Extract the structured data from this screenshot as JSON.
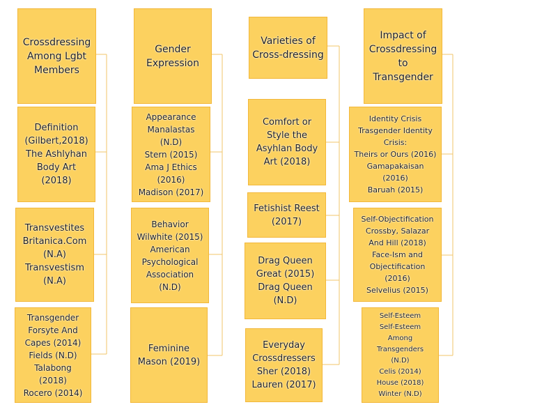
{
  "columns": [
    {
      "header": [
        "Crossdressing",
        "Among Lgbt",
        "Members"
      ],
      "children": [
        [
          "Definition",
          "(Gilbert,2018)",
          "The Ashlyhan",
          "Body Art",
          "(2018)"
        ],
        [
          "Transvestites",
          "Britanica.Com",
          "(N.A)",
          "Transvestism",
          "(N.A)"
        ],
        [
          "Transgender",
          "Forsyte And",
          "Capes (2014)",
          "Fields (N.D)",
          "Talabong",
          "(2018)",
          "Rocero (2014)"
        ]
      ]
    },
    {
      "header": [
        "Gender",
        "Expression"
      ],
      "children": [
        [
          "Appearance",
          "Manalastas",
          "(N.D)",
          "Stern (2015)",
          "Ama J Ethics",
          "(2016)",
          "Madison (2017)"
        ],
        [
          "Behavior",
          "Wilwhite (2015)",
          "American",
          "Psychological",
          "Association",
          "(N.D)"
        ],
        [
          "Feminine",
          "Mason (2019)"
        ]
      ]
    },
    {
      "header": [
        "Varieties of",
        "Cross-dressing"
      ],
      "children": [
        [
          "Comfort or",
          "Style the",
          "Asyhlan Body",
          "Art (2018)"
        ],
        [
          "Fetishist Reest",
          "(2017)"
        ],
        [
          "Drag Queen",
          "Great (2015)",
          "Drag Queen",
          "(N.D)"
        ],
        [
          "Everyday",
          "Crossdressers",
          "Sher (2018)",
          "Lauren (2017)"
        ]
      ]
    },
    {
      "header": [
        "Impact of",
        "Crossdressing",
        "to",
        "Transgender"
      ],
      "children": [
        [
          "Identity Crisis",
          "Trasgender Identity",
          "Crisis:",
          "Theirs or Ours (2016)",
          "Gamapakaisan",
          "(2016)",
          "Baruah (2015)"
        ],
        [
          "Self-Objectification",
          "Crossby, Salazar",
          "And Hill (2018)",
          "Face-Ism and",
          "Objectification",
          "(2016)",
          "Selvelius (2015)"
        ],
        [
          "Self-Esteem",
          "Self-Esteem",
          "Among",
          "Transgenders",
          "(N.D)",
          "Celis (2014)",
          "House (2018)",
          "Winter (N.D)"
        ]
      ]
    }
  ]
}
